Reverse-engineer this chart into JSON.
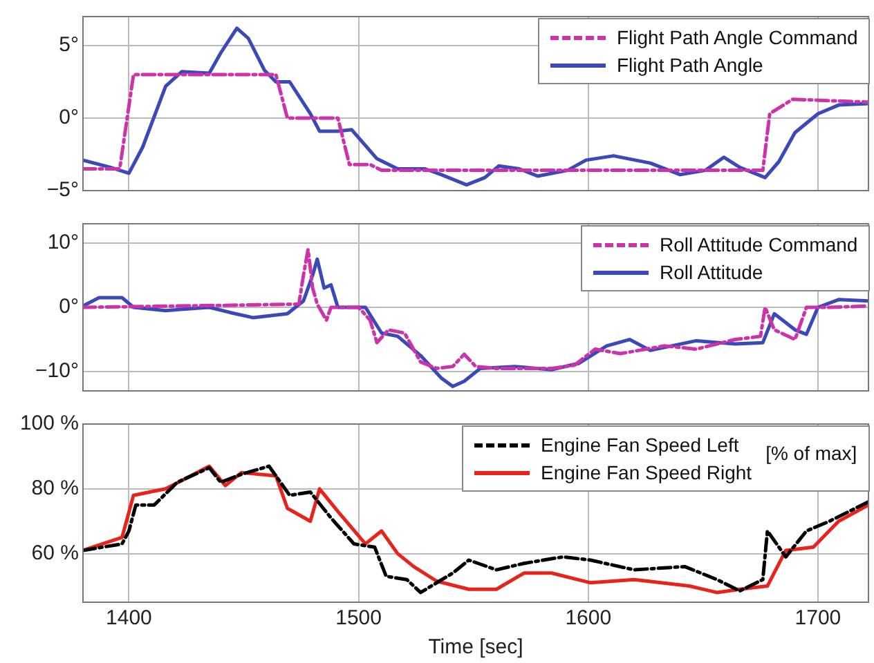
{
  "chart_data": [
    {
      "type": "line",
      "xlim": [
        1380,
        1722
      ],
      "xticks": [
        1400,
        1500,
        1600,
        1700
      ],
      "ylim": [
        -5,
        7
      ],
      "yticks": [
        {
          "value": -5,
          "label": "−5°"
        },
        {
          "value": 0,
          "label": "0°"
        },
        {
          "value": 5,
          "label": "5°"
        }
      ],
      "grid": true,
      "legend": "top right",
      "tick_labels": "y",
      "marker": "none",
      "series": [
        {
          "name": "Flight Path Angle Command",
          "color": "#cc33aa",
          "line_style": "dashed",
          "x": [
            1380,
            1396,
            1402,
            1464,
            1469,
            1491,
            1496,
            1505,
            1510,
            1676,
            1679,
            1689,
            1722
          ],
          "values": [
            -3.5,
            -3.5,
            3,
            3,
            0,
            0,
            -3.2,
            -3.2,
            -3.6,
            -3.6,
            0.3,
            1.3,
            1.1
          ]
        },
        {
          "name": "Flight Path Angle",
          "color": "#3b48b8",
          "line_style": "solid",
          "x": [
            1380,
            1392,
            1400,
            1406,
            1416,
            1423,
            1435,
            1440,
            1447,
            1452,
            1459,
            1464,
            1470,
            1479,
            1483,
            1491,
            1497,
            1508,
            1517,
            1529,
            1536,
            1547,
            1555,
            1561,
            1570,
            1578,
            1591,
            1599,
            1611,
            1627,
            1640,
            1651,
            1659,
            1666,
            1677,
            1683,
            1690,
            1700,
            1709,
            1722
          ],
          "values": [
            -2.9,
            -3.4,
            -3.8,
            -2,
            2.2,
            3.2,
            3.1,
            4.5,
            6.2,
            5.5,
            3.3,
            2.5,
            2.5,
            0.3,
            -0.9,
            -0.9,
            -0.8,
            -2.8,
            -3.5,
            -3.5,
            -3.9,
            -4.6,
            -4.1,
            -3.3,
            -3.5,
            -4,
            -3.6,
            -2.9,
            -2.6,
            -3.1,
            -3.9,
            -3.6,
            -2.7,
            -3.4,
            -4.1,
            -3,
            -1,
            0.3,
            0.9,
            1.0
          ]
        }
      ]
    },
    {
      "type": "line",
      "xlim": [
        1380,
        1722
      ],
      "xticks": [
        1400,
        1500,
        1600,
        1700
      ],
      "ylim": [
        -13,
        13
      ],
      "yticks": [
        {
          "value": -10,
          "label": "−10°"
        },
        {
          "value": 0,
          "label": "0°"
        },
        {
          "value": 10,
          "label": "10°"
        }
      ],
      "grid": true,
      "legend": "top right",
      "tick_labels": "y",
      "marker": "none",
      "series": [
        {
          "name": "Roll Attitude Command",
          "color": "#cc33aa",
          "line_style": "dashed",
          "x": [
            1380,
            1440,
            1474,
            1476,
            1478,
            1480,
            1482,
            1486,
            1488,
            1500,
            1505,
            1508,
            1513,
            1520,
            1527,
            1534,
            1541,
            1546,
            1551,
            1560,
            1584,
            1594,
            1603,
            1614,
            1633,
            1647,
            1664,
            1675,
            1677,
            1681,
            1690,
            1695,
            1705,
            1722
          ],
          "values": [
            0,
            0.3,
            0.5,
            5,
            9,
            3,
            0.5,
            -2,
            0,
            0,
            -2,
            -5.5,
            -3.5,
            -4,
            -8.5,
            -9.5,
            -9.2,
            -7.3,
            -9.2,
            -9.5,
            -9.5,
            -9,
            -6.5,
            -7.2,
            -6,
            -6.5,
            -5,
            -4.5,
            0,
            -3.5,
            -5,
            0,
            0,
            0.2
          ]
        },
        {
          "name": "Roll Attitude",
          "color": "#3b48b8",
          "line_style": "solid",
          "x": [
            1380,
            1387,
            1397,
            1402,
            1416,
            1435,
            1444,
            1454,
            1469,
            1476,
            1480,
            1482,
            1485,
            1488,
            1491,
            1503,
            1510,
            1517,
            1527,
            1536,
            1541,
            1546,
            1553,
            1568,
            1584,
            1596,
            1608,
            1618,
            1627,
            1647,
            1664,
            1676,
            1681,
            1690,
            1695,
            1700,
            1709,
            1722
          ],
          "values": [
            0.2,
            1.5,
            1.5,
            0,
            -0.5,
            0,
            -0.8,
            -1.6,
            -1,
            1,
            5,
            7.5,
            3,
            3.5,
            0,
            0,
            -4,
            -4.5,
            -7.5,
            -11,
            -12.3,
            -11.5,
            -9.5,
            -9.2,
            -9.7,
            -8.7,
            -6,
            -5,
            -6.7,
            -5.2,
            -5.7,
            -5.5,
            -1,
            -3.5,
            -4.2,
            0,
            1.2,
            1
          ]
        }
      ]
    },
    {
      "type": "line",
      "xlim": [
        1380,
        1722
      ],
      "xticks": [
        1400,
        1500,
        1600,
        1700
      ],
      "ylim": [
        45,
        100
      ],
      "yticks": [
        {
          "value": 60,
          "label": "60 %"
        },
        {
          "value": 80,
          "label": "80 %"
        },
        {
          "value": 100,
          "label": "100 %"
        }
      ],
      "xlabel": "Time [sec]",
      "grid": true,
      "legend": "top right",
      "marker": "none",
      "annotations": [
        "[% of max]"
      ],
      "series": [
        {
          "name": "Engine Fan Speed Left",
          "color": "#000000",
          "line_style": "dashed",
          "x": [
            1380,
            1397,
            1400,
            1403,
            1411,
            1421,
            1435,
            1440,
            1449,
            1461,
            1470,
            1479,
            1488,
            1498,
            1507,
            1512,
            1521,
            1527,
            1541,
            1548,
            1560,
            1572,
            1589,
            1601,
            1620,
            1642,
            1656,
            1666,
            1676,
            1678,
            1686,
            1695,
            1705,
            1722
          ],
          "values": [
            61,
            63,
            67,
            75,
            75,
            82,
            86.5,
            82,
            84.5,
            87,
            78,
            79,
            71,
            63,
            62,
            53,
            52,
            48,
            54,
            58,
            55,
            57,
            59,
            58,
            55,
            56,
            52,
            48.5,
            52,
            67,
            59,
            67,
            70,
            76
          ]
        },
        {
          "name": "Engine Fan Speed Right",
          "color": "#e8231a",
          "line_style": "solid",
          "x": [
            1380,
            1397,
            1402,
            1416,
            1435,
            1442,
            1449,
            1464,
            1469,
            1479,
            1483,
            1491,
            1503,
            1510,
            1517,
            1524,
            1534,
            1548,
            1560,
            1572,
            1584,
            1601,
            1620,
            1644,
            1656,
            1666,
            1678,
            1686,
            1698,
            1709,
            1722
          ],
          "values": [
            61,
            65,
            78,
            80,
            87,
            81,
            85,
            84,
            74,
            70,
            80,
            73,
            63,
            67,
            60,
            56,
            51.5,
            49,
            49,
            54,
            54,
            51,
            52,
            50,
            48,
            49,
            50,
            61,
            62,
            70,
            75
          ]
        }
      ]
    }
  ]
}
